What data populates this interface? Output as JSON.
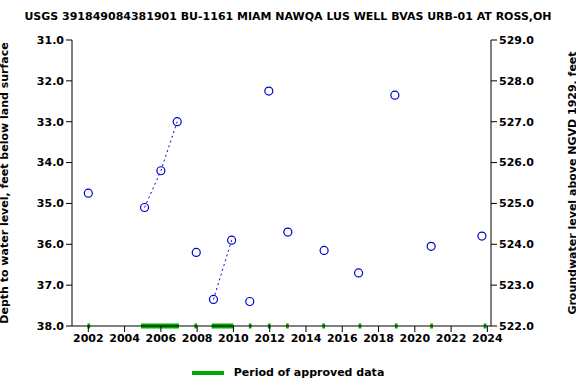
{
  "chart_data": {
    "type": "scatter",
    "title": "USGS 391849084381901 BU-1161 MIAM NAWQA LUS WELL BVAS URB-01 AT ROSS,OH",
    "y_label": "Depth to water level, feet below land surface",
    "y2_label": "Groundwater level above NGVD 1929, feet",
    "x": [
      2002.0,
      2005.1,
      2006.0,
      2006.9,
      2007.95,
      2008.9,
      2009.9,
      2010.9,
      2011.95,
      2013.0,
      2015.0,
      2016.9,
      2018.9,
      2020.9,
      2023.7
    ],
    "series": [
      {
        "type": "scatter",
        "color": "#0000cc",
        "marker": "circle",
        "values": [
          34.75,
          35.1,
          34.2,
          33.0,
          36.2,
          37.35,
          35.9,
          37.4,
          32.25,
          35.7,
          36.15,
          36.7,
          32.35,
          36.05,
          35.8
        ]
      },
      {
        "type": "line",
        "color": "#0000cc",
        "line_style": "dotted",
        "values": [
          null,
          35.1,
          34.2,
          33.0,
          null,
          37.35,
          35.9,
          null,
          null,
          null,
          null,
          null,
          null,
          null,
          null
        ]
      }
    ],
    "xlim": [
      2001.1,
      2024.2
    ],
    "xticks": [
      2002,
      2004,
      2006,
      2008,
      2010,
      2012,
      2014,
      2016,
      2018,
      2020,
      2022,
      2024
    ],
    "ylim": [
      38,
      31
    ],
    "yticks": [
      {
        "value": 31,
        "label": "31.0"
      },
      {
        "value": 32,
        "label": "32.0"
      },
      {
        "value": 33,
        "label": "33.0"
      },
      {
        "value": 34,
        "label": "34.0"
      },
      {
        "value": 35,
        "label": "35.0"
      },
      {
        "value": 36,
        "label": "36.0"
      },
      {
        "value": 37,
        "label": "37.0"
      },
      {
        "value": 38,
        "label": "38.0"
      }
    ],
    "y2lim": [
      522,
      529
    ],
    "y2ticks": [
      {
        "value": 522,
        "label": "522.0"
      },
      {
        "value": 523,
        "label": "523.0"
      },
      {
        "value": 524,
        "label": "524.0"
      },
      {
        "value": 525,
        "label": "525.0"
      },
      {
        "value": 526,
        "label": "526.0"
      },
      {
        "value": 527,
        "label": "527.0"
      },
      {
        "value": 528,
        "label": "528.0"
      },
      {
        "value": 529,
        "label": "529.0"
      }
    ],
    "approved_periods": {
      "name": "Period of approved data",
      "color": "#00aa00",
      "ranges": [
        [
          2001.95,
          2002.1
        ],
        [
          2004.9,
          2007.0
        ],
        [
          2007.85,
          2008.0
        ],
        [
          2008.8,
          2010.0
        ],
        [
          2010.85,
          2011.0
        ],
        [
          2011.9,
          2012.05
        ],
        [
          2012.9,
          2013.05
        ],
        [
          2014.9,
          2015.05
        ],
        [
          2016.9,
          2017.05
        ],
        [
          2018.9,
          2019.05
        ],
        [
          2020.85,
          2021.0
        ],
        [
          2023.8,
          2023.95
        ]
      ]
    },
    "legend": "bottom"
  }
}
